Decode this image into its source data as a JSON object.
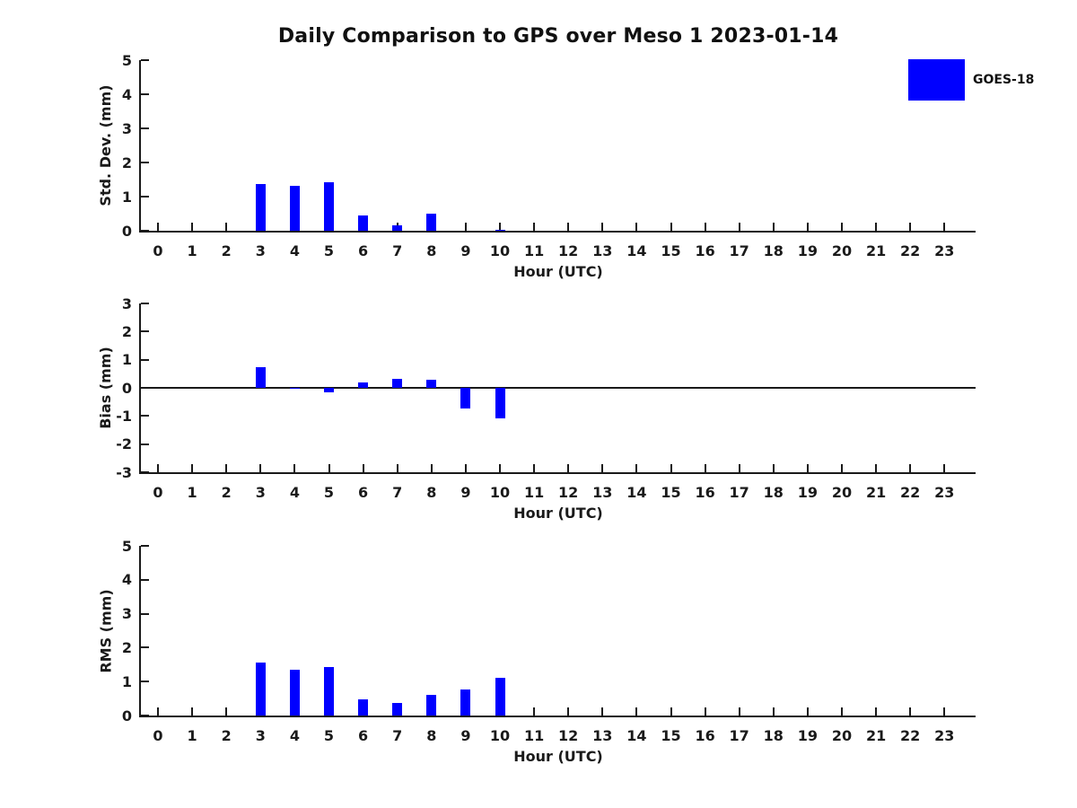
{
  "figure": {
    "title": "Daily Comparison to GPS over Meso 1 2023-01-14",
    "background": "#ffffff"
  },
  "legend": {
    "label": "GOES-18",
    "color": "#0000ff",
    "position": "top-right"
  },
  "bar_color": "#0000ff",
  "chart_data": [
    {
      "type": "bar",
      "ylabel": "Std. Dev. (mm)",
      "xlabel": "Hour (UTC)",
      "ylim": [
        0,
        5
      ],
      "yticks": [
        0,
        1,
        2,
        3,
        4,
        5
      ],
      "xlim": [
        -0.5,
        23.92
      ],
      "grid": false,
      "categories": [
        0,
        1,
        2,
        3,
        4,
        5,
        6,
        7,
        8,
        9,
        10,
        11,
        12,
        13,
        14,
        15,
        16,
        17,
        18,
        19,
        20,
        21,
        22,
        23
      ],
      "series": [
        {
          "name": "GOES-18",
          "values": [
            0,
            0,
            0,
            1.38,
            1.32,
            1.41,
            0.44,
            0.15,
            0.51,
            0,
            0.03,
            0,
            0,
            0,
            0,
            0,
            0,
            0,
            0,
            0,
            0,
            0,
            0,
            0
          ]
        }
      ]
    },
    {
      "type": "bar",
      "ylabel": "Bias (mm)",
      "xlabel": "Hour (UTC)",
      "ylim": [
        -3,
        3
      ],
      "yticks": [
        -3,
        -2,
        -1,
        0,
        1,
        2,
        3
      ],
      "xlim": [
        -0.5,
        23.92
      ],
      "grid": false,
      "zero_line": true,
      "categories": [
        0,
        1,
        2,
        3,
        4,
        5,
        6,
        7,
        8,
        9,
        10,
        11,
        12,
        13,
        14,
        15,
        16,
        17,
        18,
        19,
        20,
        21,
        22,
        23
      ],
      "series": [
        {
          "name": "GOES-18",
          "values": [
            0,
            0,
            0,
            0.72,
            -0.03,
            -0.15,
            0.19,
            0.32,
            0.29,
            -0.72,
            -1.07,
            0,
            0,
            0,
            0,
            0,
            0,
            0,
            0,
            0,
            0,
            0,
            0,
            0
          ]
        }
      ]
    },
    {
      "type": "bar",
      "ylabel": "RMS (mm)",
      "xlabel": "Hour (UTC)",
      "ylim": [
        0,
        5
      ],
      "yticks": [
        0,
        1,
        2,
        3,
        4,
        5
      ],
      "xlim": [
        -0.5,
        23.92
      ],
      "grid": false,
      "categories": [
        0,
        1,
        2,
        3,
        4,
        5,
        6,
        7,
        8,
        9,
        10,
        11,
        12,
        13,
        14,
        15,
        16,
        17,
        18,
        19,
        20,
        21,
        22,
        23
      ],
      "series": [
        {
          "name": "GOES-18",
          "values": [
            0,
            0,
            0,
            1.55,
            1.35,
            1.42,
            0.47,
            0.37,
            0.6,
            0.76,
            1.1,
            0,
            0,
            0,
            0,
            0,
            0,
            0,
            0,
            0,
            0,
            0,
            0,
            0
          ]
        }
      ]
    }
  ]
}
